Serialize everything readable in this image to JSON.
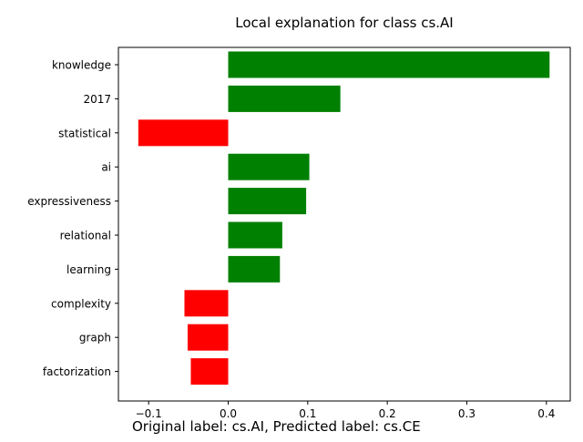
{
  "chart_data": {
    "type": "bar",
    "orientation": "horizontal",
    "title": "Local explanation for class cs.AI",
    "xlabel": "",
    "ylabel": "",
    "categories": [
      "knowledge",
      "2017",
      "statistical",
      "ai",
      "expressiveness",
      "relational",
      "learning",
      "complexity",
      "graph",
      "factorization"
    ],
    "values": [
      0.404,
      0.141,
      -0.113,
      0.102,
      0.098,
      0.068,
      0.065,
      -0.055,
      -0.051,
      -0.047
    ],
    "xlim": [
      -0.138,
      0.43
    ],
    "xticks": [
      -0.1,
      0.0,
      0.1,
      0.2,
      0.3,
      0.4
    ],
    "xtick_labels": [
      "−0.1",
      "0.0",
      "0.1",
      "0.2",
      "0.3",
      "0.4"
    ],
    "positive_color": "#008000",
    "negative_color": "#ff0000",
    "grid": false,
    "legend": "none"
  },
  "caption": "Original label: cs.AI, Predicted label: cs.CE"
}
